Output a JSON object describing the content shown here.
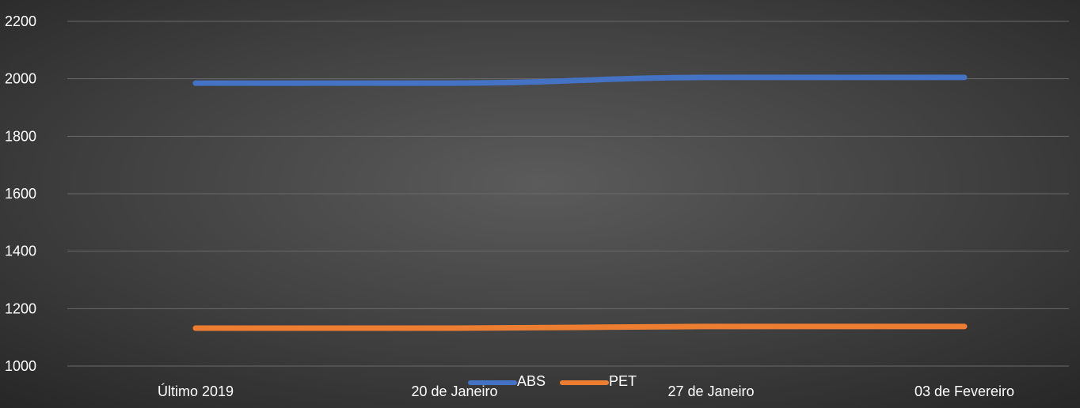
{
  "chart_data": {
    "type": "line",
    "categories": [
      "Último 2019",
      "20 de Janeiro",
      "27 de Janeiro",
      "03 de Fevereiro"
    ],
    "series": [
      {
        "name": "ABS",
        "values": [
          1985,
          1985,
          2005,
          2005
        ],
        "color": "#4472C4"
      },
      {
        "name": "PET",
        "values": [
          1132,
          1132,
          1138,
          1138
        ],
        "color": "#ED7D31"
      }
    ],
    "y_ticks": [
      "1000",
      "1200",
      "1400",
      "1600",
      "1800",
      "2000",
      "2200"
    ],
    "ylim": [
      1000,
      2200
    ],
    "grid": true,
    "legend_position": "bottom",
    "background": "dark-radial-gradient",
    "smooth": true
  }
}
